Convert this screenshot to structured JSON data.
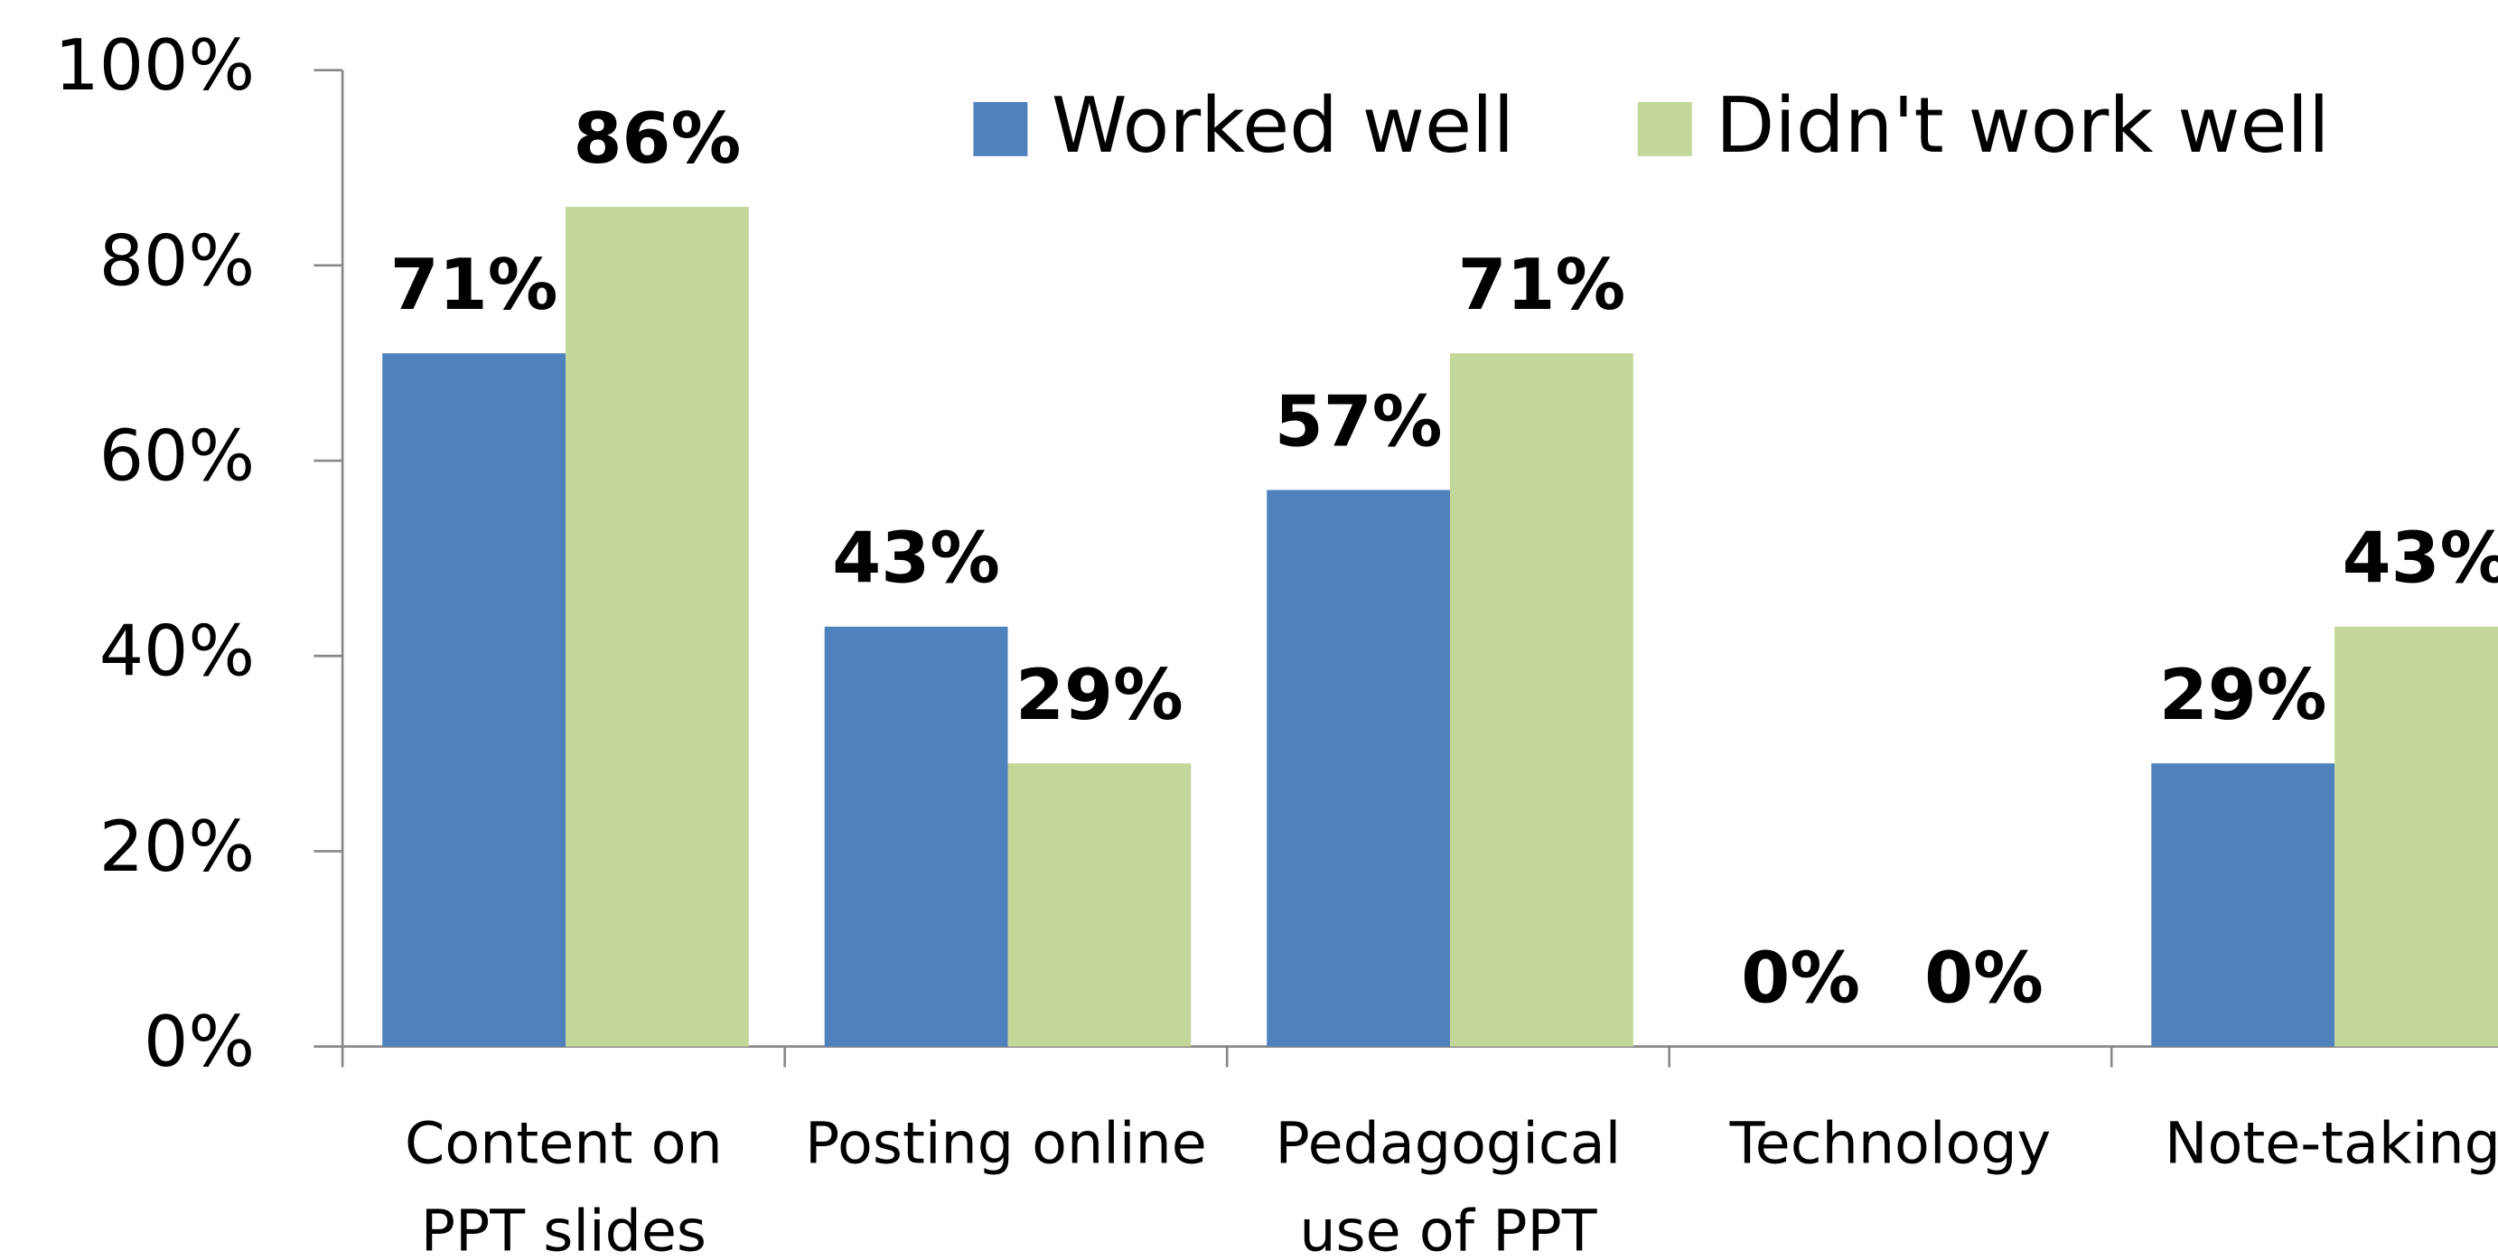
{
  "chart_data": {
    "type": "bar",
    "categories": [
      [
        "Content on",
        "PPT slides"
      ],
      [
        "Posting online"
      ],
      [
        "Pedagogical",
        "use of PPT"
      ],
      [
        "Technology"
      ],
      [
        "Note-taking"
      ]
    ],
    "series": [
      {
        "name": "Worked well",
        "color": "#4f81bd",
        "values": [
          71,
          43,
          57,
          0,
          29
        ],
        "value_labels": [
          "71%",
          "43%",
          "57%",
          "0%",
          "29%"
        ]
      },
      {
        "name": "Didn't work well",
        "color": "#c4d79b",
        "values": [
          86,
          29,
          71,
          0,
          43
        ],
        "value_labels": [
          "86%",
          "29%",
          "71%",
          "0%",
          "43%"
        ]
      }
    ],
    "ylim": [
      0,
      100
    ],
    "yticks": [
      {
        "value": 0,
        "label": "0%"
      },
      {
        "value": 20,
        "label": "20%"
      },
      {
        "value": 40,
        "label": "40%"
      },
      {
        "value": 60,
        "label": "60%"
      },
      {
        "value": 80,
        "label": "80%"
      },
      {
        "value": 100,
        "label": "100%"
      }
    ],
    "grid": false,
    "legend": "top"
  }
}
